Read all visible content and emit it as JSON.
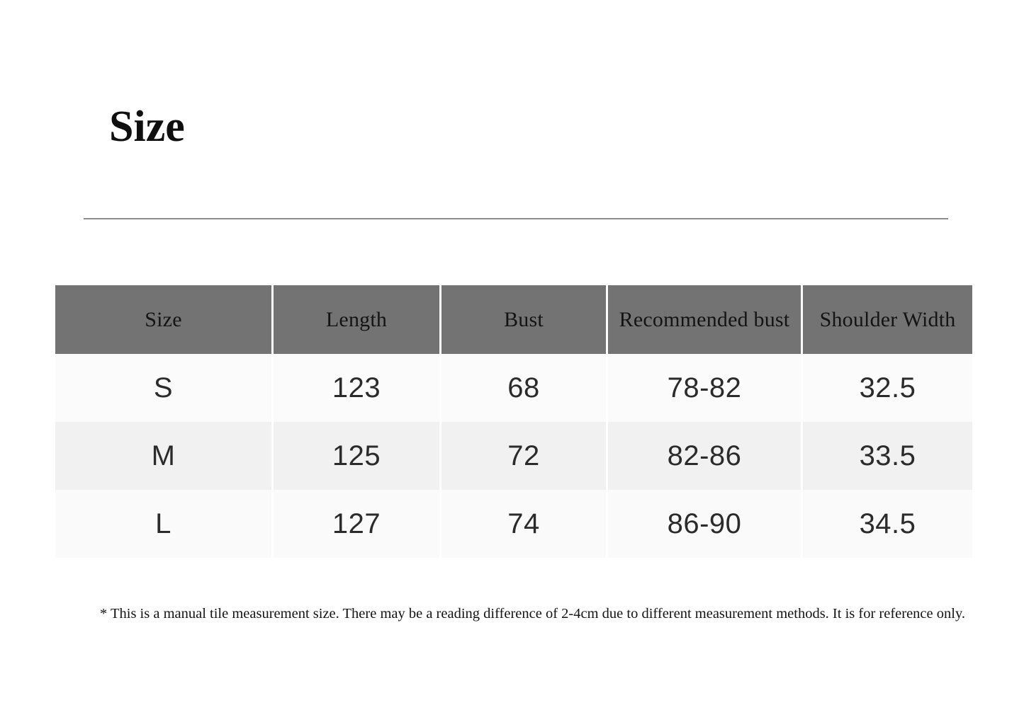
{
  "page_title": "Size",
  "table": {
    "headers": [
      "Size",
      "Length",
      "Bust",
      "Recommended bust",
      "Shoulder Width"
    ],
    "rows": [
      [
        "S",
        "123",
        "68",
        "78-82",
        "32.5"
      ],
      [
        "M",
        "125",
        "72",
        "82-86",
        "33.5"
      ],
      [
        "L",
        "127",
        "74",
        "86-90",
        "34.5"
      ]
    ]
  },
  "footnote": "* This is a manual tile measurement size. There may be a reading difference of 2-4cm due to different measurement methods. It is for reference only.",
  "colors": {
    "header_bg": "#737373",
    "row_light_bg": "#fbfbfb",
    "row_alt_bg": "#f1f1f1",
    "column_divider": "#ffffff",
    "rule_line": "#8c8c8c",
    "text": "#141414",
    "data_text": "#2b2b2b"
  },
  "chart_data": {
    "type": "table",
    "title": "Size",
    "columns": [
      "Size",
      "Length",
      "Bust",
      "Recommended bust",
      "Shoulder Width"
    ],
    "rows": [
      {
        "size": "S",
        "length": 123,
        "bust": 68,
        "recommended_bust": "78-82",
        "shoulder_width": 32.5
      },
      {
        "size": "M",
        "length": 125,
        "bust": 72,
        "recommended_bust": "82-86",
        "shoulder_width": 33.5
      },
      {
        "size": "L",
        "length": 127,
        "bust": 74,
        "recommended_bust": "86-90",
        "shoulder_width": 34.5
      }
    ],
    "footnote": "* This is a manual tile measurement size. There may be a reading difference of 2-4cm due to different measurement methods. It is for reference only.",
    "units": "cm"
  }
}
